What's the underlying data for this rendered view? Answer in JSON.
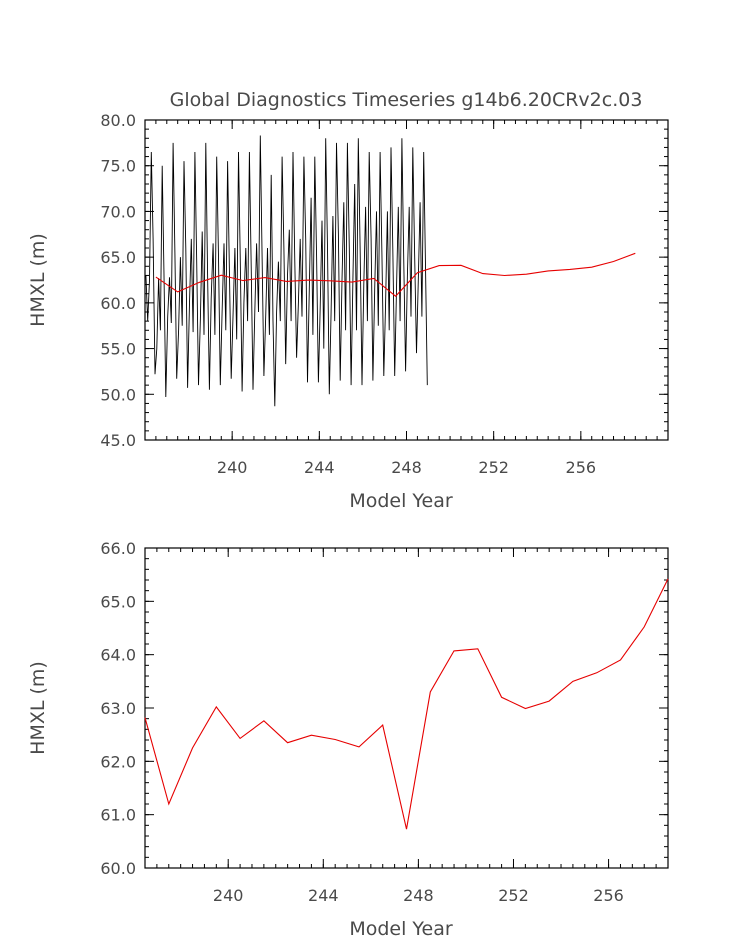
{
  "figure": {
    "title": "Global Diagnostics Timeseries g14b6.20CRv2c.03"
  },
  "chart_data": [
    {
      "type": "line",
      "title": "Global Diagnostics Timeseries g14b6.20CRv2c.03",
      "xlabel": "Model Year",
      "ylabel": "HMXL (m)",
      "xlim": [
        236.0,
        260.0
      ],
      "ylim": [
        45.0,
        80.0
      ],
      "x_ticks": [
        240,
        244,
        248,
        252,
        256
      ],
      "x_tick_labels": [
        "240",
        "244",
        "248",
        "252",
        "256"
      ],
      "y_ticks": [
        45,
        50,
        55,
        60,
        65,
        70,
        75,
        80
      ],
      "y_tick_labels": [
        "45.0",
        "50.0",
        "55.0",
        "60.0",
        "65.0",
        "70.0",
        "75.0",
        "80.0"
      ],
      "grid": false,
      "series": [
        {
          "name": "",
          "color": "#000000",
          "description_kind": "monthly",
          "start_year": 236.04,
          "step": 0.0833333,
          "values": [
            63.0,
            58.0,
            62.5,
            76.5,
            67.0,
            52.2,
            55.0,
            62.7,
            57.0,
            75.0,
            63.0,
            49.7,
            58.5,
            62.8,
            57.8,
            77.5,
            65.5,
            51.7,
            57.0,
            65.0,
            57.5,
            75.5,
            66.0,
            50.7,
            60.0,
            67.0,
            56.8,
            76.5,
            64.5,
            51.0,
            58.3,
            67.8,
            56.5,
            77.5,
            63.0,
            50.5,
            60.5,
            66.5,
            56.5,
            76.0,
            65.0,
            51.0,
            59.0,
            66.5,
            57.0,
            75.5,
            63.5,
            51.7,
            58.5,
            66.0,
            56.0,
            76.5,
            64.5,
            50.3,
            60.0,
            66.0,
            58.0,
            76.5,
            64.0,
            50.5,
            59.0,
            66.5,
            59.0,
            78.3,
            65.0,
            52.0,
            58.5,
            66.0,
            56.5,
            74.0,
            58.0,
            48.7,
            59.0,
            64.5,
            58.0,
            76.0,
            66.0,
            53.3,
            63.0,
            68.0,
            58.0,
            76.5,
            64.5,
            54.0,
            60.0,
            67.0,
            58.5,
            76.0,
            67.0,
            51.3,
            61.5,
            71.5,
            56.5,
            76.0,
            65.0,
            51.3,
            59.5,
            69.0,
            55.0,
            78.0,
            66.0,
            50.0,
            59.0,
            69.5,
            58.0,
            77.5,
            67.5,
            51.5,
            62.5,
            71.0,
            57.0,
            77.5,
            66.0,
            51.0,
            62.5,
            73.0,
            57.0,
            78.0,
            65.5,
            51.0,
            62.0,
            70.5,
            58.0,
            76.5,
            67.0,
            51.5,
            61.5,
            70.0,
            57.5,
            76.5,
            65.5,
            52.0,
            60.0,
            70.0,
            57.0,
            77.0,
            66.0,
            52.0,
            61.5,
            70.5,
            58.0,
            78.0,
            65.0,
            52.5,
            63.0,
            70.5,
            58.5,
            77.0,
            65.5,
            54.5,
            62.5,
            71.0,
            58.5,
            76.5,
            64.0,
            51.0
          ]
        },
        {
          "name": "",
          "color": "#e60000",
          "x": [
            236.5,
            237.5,
            238.5,
            239.5,
            240.5,
            241.5,
            242.5,
            243.5,
            244.5,
            245.5,
            246.5,
            247.5,
            248.5,
            249.5,
            250.5,
            251.5,
            252.5,
            253.5,
            254.5,
            255.5,
            256.5,
            257.5,
            258.5
          ],
          "values": [
            62.82,
            61.2,
            62.25,
            63.02,
            62.43,
            62.76,
            62.35,
            62.49,
            62.41,
            62.27,
            62.68,
            60.73,
            63.3,
            64.07,
            64.11,
            63.2,
            62.99,
            63.13,
            63.5,
            63.66,
            63.9,
            64.52,
            65.42
          ]
        }
      ]
    },
    {
      "type": "line",
      "title": "",
      "xlabel": "Model Year",
      "ylabel": "HMXL (m)",
      "xlim": [
        236.5,
        258.5
      ],
      "ylim": [
        60.0,
        66.0
      ],
      "x_ticks": [
        240,
        244,
        248,
        252,
        256
      ],
      "x_tick_labels": [
        "240",
        "244",
        "248",
        "252",
        "256"
      ],
      "y_ticks": [
        60,
        61,
        62,
        63,
        64,
        65,
        66
      ],
      "y_tick_labels": [
        "60.0",
        "61.0",
        "62.0",
        "63.0",
        "64.0",
        "65.0",
        "66.0"
      ],
      "grid": false,
      "series": [
        {
          "name": "",
          "color": "#e60000",
          "x": [
            236.5,
            237.5,
            238.5,
            239.5,
            240.5,
            241.5,
            242.5,
            243.5,
            244.5,
            245.5,
            246.5,
            247.5,
            248.5,
            249.5,
            250.5,
            251.5,
            252.5,
            253.5,
            254.5,
            255.5,
            256.5,
            257.5,
            258.5
          ],
          "values": [
            62.82,
            61.2,
            62.25,
            63.02,
            62.43,
            62.76,
            62.35,
            62.49,
            62.41,
            62.27,
            62.68,
            60.73,
            63.3,
            64.07,
            64.11,
            63.2,
            62.99,
            63.13,
            63.5,
            63.66,
            63.9,
            64.52,
            65.42
          ]
        }
      ]
    }
  ]
}
